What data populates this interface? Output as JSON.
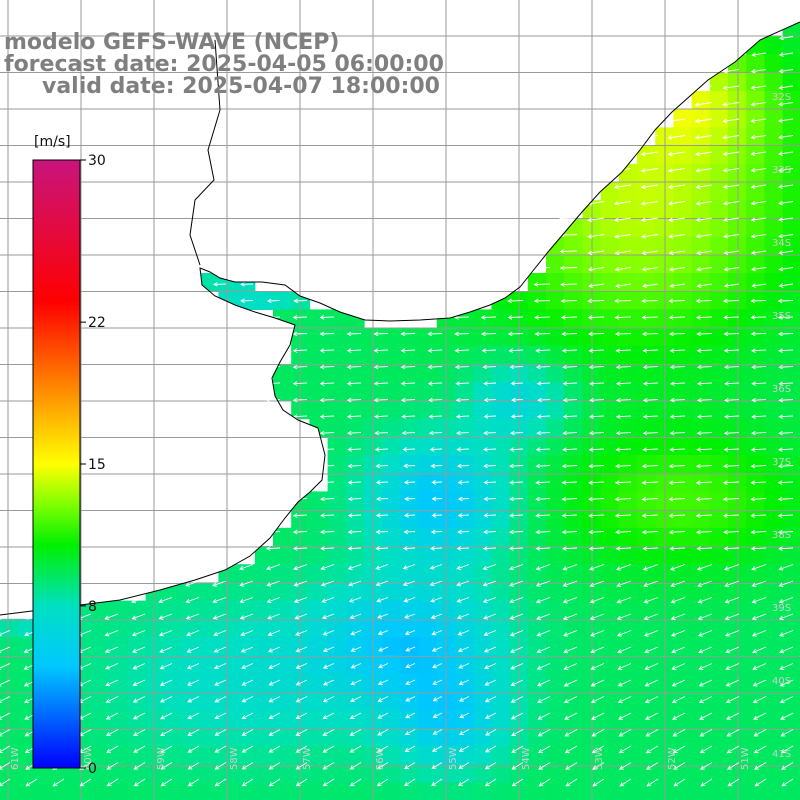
{
  "title": {
    "model": "modelo GEFS-WAVE (NCEP)",
    "forecast": "forecast date: 2025-04-05 06:00:00",
    "valid": "valid date: 2025-04-07 18:00:00"
  },
  "colorbar": {
    "unit": "[m/s]",
    "ticks": [
      "30",
      "22",
      "15",
      "8",
      "0"
    ],
    "tick_values": [
      30,
      22,
      15,
      8,
      0
    ],
    "range": [
      0,
      30
    ],
    "colors": [
      "#0000ff",
      "#00c8ff",
      "#00e0c0",
      "#00f000",
      "#7fff00",
      "#ffff00",
      "#ff8000",
      "#ff0000",
      "#c8147d"
    ]
  },
  "map": {
    "lat_labels": [
      "32S",
      "33S",
      "34S",
      "35S",
      "36S",
      "37S",
      "38S",
      "39S",
      "40S",
      "41S"
    ],
    "lon_labels": [
      "61W",
      "60W",
      "59W",
      "58W",
      "57W",
      "56W",
      "55W",
      "54W",
      "53W",
      "52W",
      "51W"
    ],
    "land_color": "#ffffff",
    "grid_color": "#9a9a9a",
    "coast_color": "#000000"
  }
}
